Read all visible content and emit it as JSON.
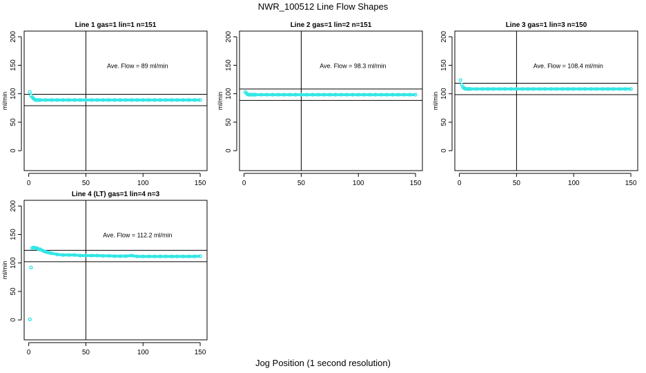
{
  "title": "NWR_100512  Line Flow Shapes",
  "xlabel": "Jog Position (1 second resolution)",
  "chart_data": [
    {
      "type": "scatter",
      "title": "Line 1 gas=1 lin=1 n=151",
      "ylabel": "ml/min",
      "annotation": "Ave. Flow =  89  ml/min",
      "average": 89,
      "hlines": [
        99,
        79
      ],
      "vline": 50,
      "xlim": [
        -4,
        156
      ],
      "ylim": [
        -35,
        210
      ],
      "xticks": [
        0,
        50,
        100,
        150
      ],
      "yticks": [
        0,
        50,
        100,
        150,
        200
      ],
      "point_color": "#33e6e6",
      "x": [
        1,
        2,
        3,
        4,
        5,
        6,
        7,
        8,
        9,
        10,
        15,
        20,
        25,
        30,
        35,
        40,
        45,
        50,
        55,
        60,
        65,
        70,
        75,
        80,
        85,
        90,
        95,
        100,
        105,
        110,
        115,
        120,
        125,
        130,
        135,
        140,
        145,
        150
      ],
      "y": [
        103,
        97,
        94,
        92,
        90,
        89,
        89,
        89,
        89,
        89,
        89,
        89,
        89,
        89,
        89,
        89,
        89,
        89,
        89,
        89,
        89,
        89,
        89,
        89,
        89,
        89,
        89,
        89,
        89,
        89,
        89,
        89,
        89,
        89,
        89,
        89,
        89,
        89
      ]
    },
    {
      "type": "scatter",
      "title": "Line 2 gas=1 lin=2 n=151",
      "ylabel": "ml/min",
      "annotation": "Ave. Flow =  98.3  ml/min",
      "average": 98.3,
      "hlines": [
        108.3,
        88.3
      ],
      "vline": 50,
      "xlim": [
        -4,
        156
      ],
      "ylim": [
        -35,
        210
      ],
      "xticks": [
        0,
        50,
        100,
        150
      ],
      "yticks": [
        0,
        50,
        100,
        150,
        200
      ],
      "point_color": "#33e6e6",
      "x": [
        1,
        2,
        3,
        4,
        5,
        6,
        7,
        8,
        9,
        10,
        15,
        20,
        25,
        30,
        35,
        40,
        45,
        50,
        55,
        60,
        65,
        70,
        75,
        80,
        85,
        90,
        95,
        100,
        105,
        110,
        115,
        120,
        125,
        130,
        135,
        140,
        145,
        150
      ],
      "y": [
        103,
        101,
        99,
        98.5,
        98.3,
        98.3,
        98.3,
        98.3,
        98.3,
        98.3,
        98.3,
        98.3,
        98.3,
        98.3,
        98.3,
        98.3,
        98.3,
        98.3,
        98.3,
        98.3,
        98.3,
        98.3,
        98.3,
        98.3,
        98.3,
        98.3,
        98.3,
        98.3,
        98.3,
        98.3,
        98.3,
        98.3,
        98.3,
        98.3,
        98.3,
        98.3,
        98.3,
        98.3
      ]
    },
    {
      "type": "scatter",
      "title": "Line 3 gas=1 lin=3 n=150",
      "ylabel": "ml/min",
      "annotation": "Ave. Flow =  108.4  ml/min",
      "average": 108.4,
      "hlines": [
        118.4,
        98.4
      ],
      "vline": 50,
      "xlim": [
        -4,
        156
      ],
      "ylim": [
        -35,
        210
      ],
      "xticks": [
        0,
        50,
        100,
        150
      ],
      "yticks": [
        0,
        50,
        100,
        150,
        200
      ],
      "point_color": "#33e6e6",
      "x": [
        1,
        2,
        3,
        4,
        5,
        6,
        7,
        8,
        9,
        10,
        15,
        20,
        25,
        30,
        35,
        40,
        45,
        50,
        55,
        60,
        65,
        70,
        75,
        80,
        85,
        90,
        95,
        100,
        105,
        110,
        115,
        120,
        125,
        130,
        135,
        140,
        145,
        150
      ],
      "y": [
        124,
        116,
        112,
        110,
        109,
        108.5,
        108.4,
        108.4,
        108.4,
        108.4,
        108.4,
        108.4,
        108.4,
        108.4,
        108.4,
        108.4,
        108.4,
        108.4,
        108.4,
        108.4,
        108.4,
        108.4,
        108.4,
        108.4,
        108.4,
        108.4,
        108.4,
        108.4,
        108.4,
        108.4,
        108.4,
        108.4,
        108.4,
        108.4,
        108.4,
        108.4,
        108.4,
        108.4
      ]
    },
    {
      "type": "scatter",
      "title": "Line 4 (LT) gas=1 lin=4 n=3",
      "ylabel": "ml/min",
      "annotation": "Ave. Flow =  112.2  ml/min",
      "average": 112.2,
      "hlines": [
        122.2,
        102.2
      ],
      "vline": 50,
      "xlim": [
        -4,
        156
      ],
      "ylim": [
        -35,
        210
      ],
      "xticks": [
        0,
        50,
        100,
        150
      ],
      "yticks": [
        0,
        50,
        100,
        150,
        200
      ],
      "point_color": "#33e6e6",
      "x": [
        1,
        2,
        3,
        4,
        5,
        6,
        7,
        8,
        9,
        10,
        12,
        14,
        16,
        18,
        20,
        25,
        30,
        35,
        40,
        45,
        50,
        55,
        60,
        65,
        70,
        75,
        80,
        85,
        90,
        95,
        100,
        105,
        110,
        115,
        120,
        125,
        130,
        135,
        140,
        145,
        150
      ],
      "y": [
        1,
        92,
        126,
        127,
        127,
        126,
        126,
        125,
        124,
        124,
        122,
        120,
        119,
        118,
        117,
        115,
        114,
        114,
        114,
        113,
        113,
        113,
        113,
        112.5,
        112.5,
        112,
        112,
        112,
        113,
        111.5,
        111.5,
        111.5,
        111.5,
        111.5,
        111.5,
        111.5,
        111.5,
        111.5,
        111.5,
        111.5,
        112
      ]
    }
  ]
}
